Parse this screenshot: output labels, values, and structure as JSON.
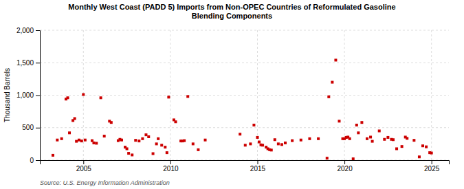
{
  "chart_data": {
    "type": "scatter",
    "title": "Monthly West Coast (PADD 5) Imports from Non-OPEC Countries of Reformulated Gasoline\nBlending Components",
    "y_label": "Thousand Barrels",
    "annotations": [
      "Source: U.S. Energy Information Administration"
    ],
    "color": "#cc0000",
    "marker": "square",
    "grid": true,
    "xlim": [
      2002.5,
      2026.0
    ],
    "xticks": [
      2005,
      2010,
      2015,
      2020,
      2025
    ],
    "ylim": [
      0,
      2000
    ],
    "yticks": [
      0,
      500,
      {
        "value": 1000,
        "label": "1,000"
      },
      {
        "value": 1500,
        "label": "1,500"
      },
      {
        "value": 2000,
        "label": "2,000"
      }
    ],
    "x": [
      2003.25,
      2003.5,
      2003.75,
      2004.0,
      2004.1,
      2004.2,
      2004.4,
      2004.5,
      2004.6,
      2004.75,
      2004.9,
      2005.0,
      2005.1,
      2005.5,
      2005.6,
      2005.75,
      2006.0,
      2006.2,
      2006.5,
      2006.6,
      2007.0,
      2007.1,
      2007.2,
      2007.4,
      2007.5,
      2007.6,
      2007.8,
      2008.0,
      2008.2,
      2008.4,
      2008.6,
      2008.75,
      2009.0,
      2009.2,
      2009.3,
      2009.5,
      2009.7,
      2009.8,
      2009.9,
      2010.2,
      2010.3,
      2010.6,
      2010.7,
      2010.8,
      2011.0,
      2011.3,
      2011.6,
      2012.0,
      2014.0,
      2014.3,
      2014.6,
      2014.8,
      2015.0,
      2015.1,
      2015.2,
      2015.3,
      2015.5,
      2015.6,
      2015.7,
      2015.8,
      2016.0,
      2016.2,
      2016.4,
      2016.6,
      2017.0,
      2017.5,
      2018.0,
      2018.5,
      2019.0,
      2019.1,
      2019.3,
      2019.5,
      2019.7,
      2019.9,
      2020.0,
      2020.1,
      2020.2,
      2020.3,
      2020.5,
      2020.7,
      2020.8,
      2021.0,
      2021.3,
      2021.5,
      2021.6,
      2022.0,
      2022.3,
      2022.5,
      2022.7,
      2022.8,
      2023.0,
      2023.3,
      2023.5,
      2023.6,
      2024.0,
      2024.3,
      2024.5,
      2024.7,
      2024.9,
      2025.0
    ],
    "values": [
      75,
      310,
      330,
      940,
      960,
      420,
      610,
      640,
      290,
      310,
      295,
      1010,
      310,
      300,
      265,
      260,
      960,
      370,
      600,
      580,
      300,
      320,
      310,
      200,
      175,
      105,
      80,
      305,
      295,
      330,
      390,
      360,
      100,
      250,
      330,
      230,
      200,
      115,
      970,
      620,
      590,
      295,
      295,
      300,
      980,
      250,
      160,
      310,
      400,
      230,
      250,
      540,
      350,
      280,
      235,
      230,
      200,
      175,
      160,
      155,
      315,
      250,
      240,
      265,
      300,
      310,
      330,
      330,
      30,
      975,
      1200,
      1540,
      600,
      330,
      330,
      350,
      355,
      330,
      20,
      540,
      420,
      580,
      330,
      355,
      290,
      450,
      320,
      350,
      320,
      315,
      175,
      210,
      355,
      335,
      305,
      50,
      220,
      205,
      115,
      110
    ]
  }
}
